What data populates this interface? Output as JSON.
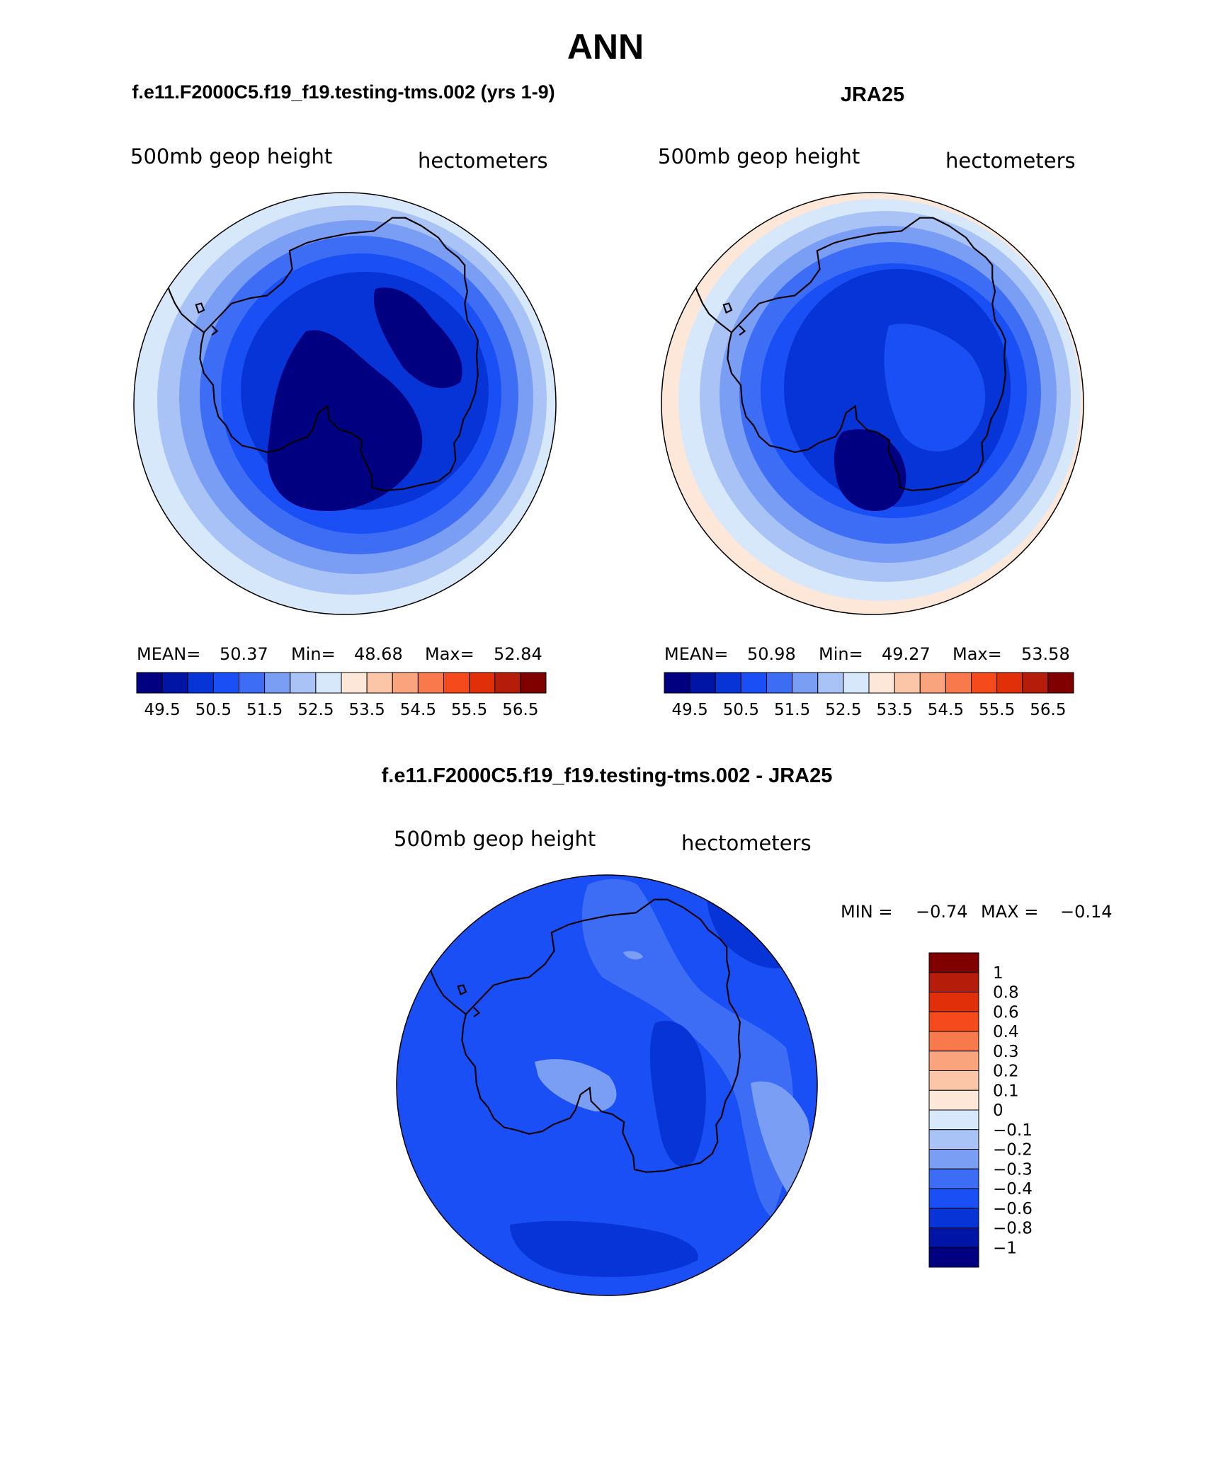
{
  "main_title": "ANN",
  "panels": {
    "model": {
      "title": "f.e11.F2000C5.f19_f19.testing-tms.002 (yrs 1-9)",
      "variable": "500mb geop height",
      "units": "hectometers",
      "stats": {
        "mean_label": "MEAN=",
        "mean": "50.37",
        "min_label": "Min=",
        "min": "48.68",
        "max_label": "Max=",
        "max": "52.84"
      }
    },
    "obs": {
      "title": "JRA25",
      "variable": "500mb geop height",
      "units": "hectometers",
      "stats": {
        "mean_label": "MEAN=",
        "mean": "50.98",
        "min_label": "Min=",
        "min": "49.27",
        "max_label": "Max=",
        "max": "53.58"
      }
    },
    "diff": {
      "title": "f.e11.F2000C5.f19_f19.testing-tms.002 - JRA25",
      "variable": "500mb geop height",
      "units": "hectometers",
      "minmax": {
        "min_label": "MIN =",
        "min": "−0.74",
        "max_label": "MAX =",
        "max": "−0.14"
      }
    }
  },
  "colorbars": {
    "abs": {
      "labels": [
        "49.5",
        "50.5",
        "51.5",
        "52.5",
        "53.5",
        "54.5",
        "55.5",
        "56.5"
      ],
      "colors": [
        "#000081",
        "#0015a6",
        "#0634d6",
        "#1a4ff5",
        "#3d6df5",
        "#7b9ef5",
        "#a9c3f7",
        "#d8e8fb",
        "#fde7d8",
        "#fbc6a8",
        "#f9a47c",
        "#f87a4c",
        "#f44a1c",
        "#e12f0a",
        "#b61c0a",
        "#800000"
      ]
    },
    "diff": {
      "labels": [
        "1",
        "0.8",
        "0.6",
        "0.4",
        "0.3",
        "0.2",
        "0.1",
        "0",
        "−0.1",
        "−0.2",
        "−0.3",
        "−0.4",
        "−0.6",
        "−0.8",
        "−1"
      ],
      "colors": [
        "#800000",
        "#b61c0a",
        "#e12f0a",
        "#f44a1c",
        "#f87a4c",
        "#f9a47c",
        "#fbc6a8",
        "#fde7d8",
        "#d8e8fb",
        "#a9c3f7",
        "#7b9ef5",
        "#3d6df5",
        "#1a4ff5",
        "#0634d6",
        "#0015a6",
        "#000081"
      ]
    }
  }
}
